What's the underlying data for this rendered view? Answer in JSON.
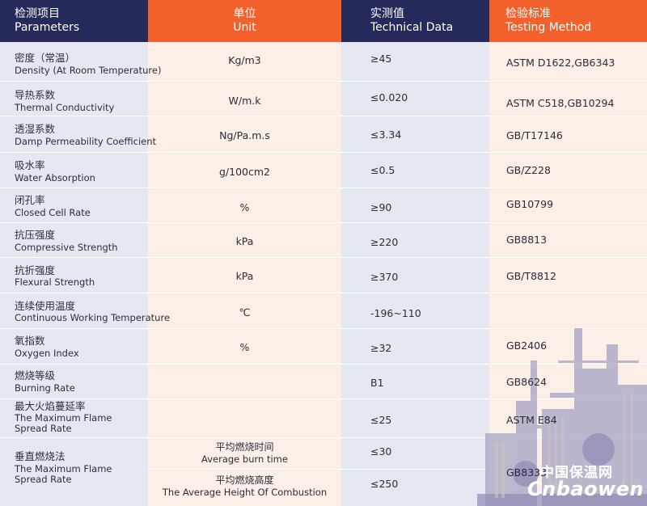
{
  "header": {
    "c1": {
      "cn": "检测项目",
      "en": "Parameters"
    },
    "c2": {
      "cn": "单位",
      "en": "Unit"
    },
    "c3": {
      "cn": "实测值",
      "en": "Technical Data"
    },
    "c4": {
      "cn": "检验标准",
      "en": "Testing Method"
    }
  },
  "rows": [
    {
      "cn": "密度（常温）",
      "en": "Density (At Room Temperature)",
      "unit": "Kg/m3",
      "value": "≥45",
      "method": "ASTM D1622,GB6343"
    },
    {
      "cn": "导热系数",
      "en": "Thermal Conductivity",
      "unit": "W/m.k",
      "value": "≤0.020",
      "method": "ASTM C518,GB10294"
    },
    {
      "cn": "透湿系数",
      "en": "Damp Permeability Coefficient",
      "unit": "Ng/Pa.m.s",
      "value": "≤3.34",
      "method": "GB/T17146"
    },
    {
      "cn": "吸水率",
      "en": "Water Absorption",
      "unit": "g/100cm2",
      "value": "≤0.5",
      "method": "GB/Z228"
    },
    {
      "cn": "闭孔率",
      "en": "Closed Cell Rate",
      "unit": "%",
      "value": "≥90",
      "method": "GB10799"
    },
    {
      "cn": "抗压强度",
      "en": "Compressive Strength",
      "unit": "kPa",
      "value": "≥220",
      "method": "GB8813"
    },
    {
      "cn": "抗折强度",
      "en": "Flexural Strength",
      "unit": "kPa",
      "value": "≥370",
      "method": "GB/T8812"
    },
    {
      "cn": "连续使用温度",
      "en": "Continuous Working Temperature",
      "unit": "℃",
      "value": "-196~110",
      "method": ""
    },
    {
      "cn": "氧指数",
      "en": "Oxygen Index",
      "unit": "%",
      "value": "≥32",
      "method": "GB2406"
    },
    {
      "cn": "燃烧等级",
      "en": "Burning Rate",
      "unit": "",
      "value": "B1",
      "method": "GB8624"
    },
    {
      "cn": "最大火焰蔓延率",
      "en": "The Maximum Flame",
      "en2": "Spread Rate",
      "unit": "",
      "value": "≤25",
      "method": "ASTM E84"
    }
  ],
  "last": {
    "cn": "垂直燃烧法",
    "en": "The Maximum Flame",
    "en2": "Spread Rate",
    "sub1": {
      "cn": "平均燃烧时间",
      "en": "Average burn time",
      "value": "≤30"
    },
    "sub2": {
      "cn": "平均燃烧高度",
      "en": "The Average Height Of Combustion",
      "value": "≤250"
    },
    "method": "GB8333"
  },
  "watermark": {
    "text_cn": "中国保温网",
    "text_en": "Cnbaowen"
  },
  "colors": {
    "navy": "#262a5a",
    "orange": "#f2612c",
    "col1": "#e6e8f1",
    "col2": "#fbefe8",
    "col3": "#e6e8f1",
    "col4": "#fbefe8"
  }
}
